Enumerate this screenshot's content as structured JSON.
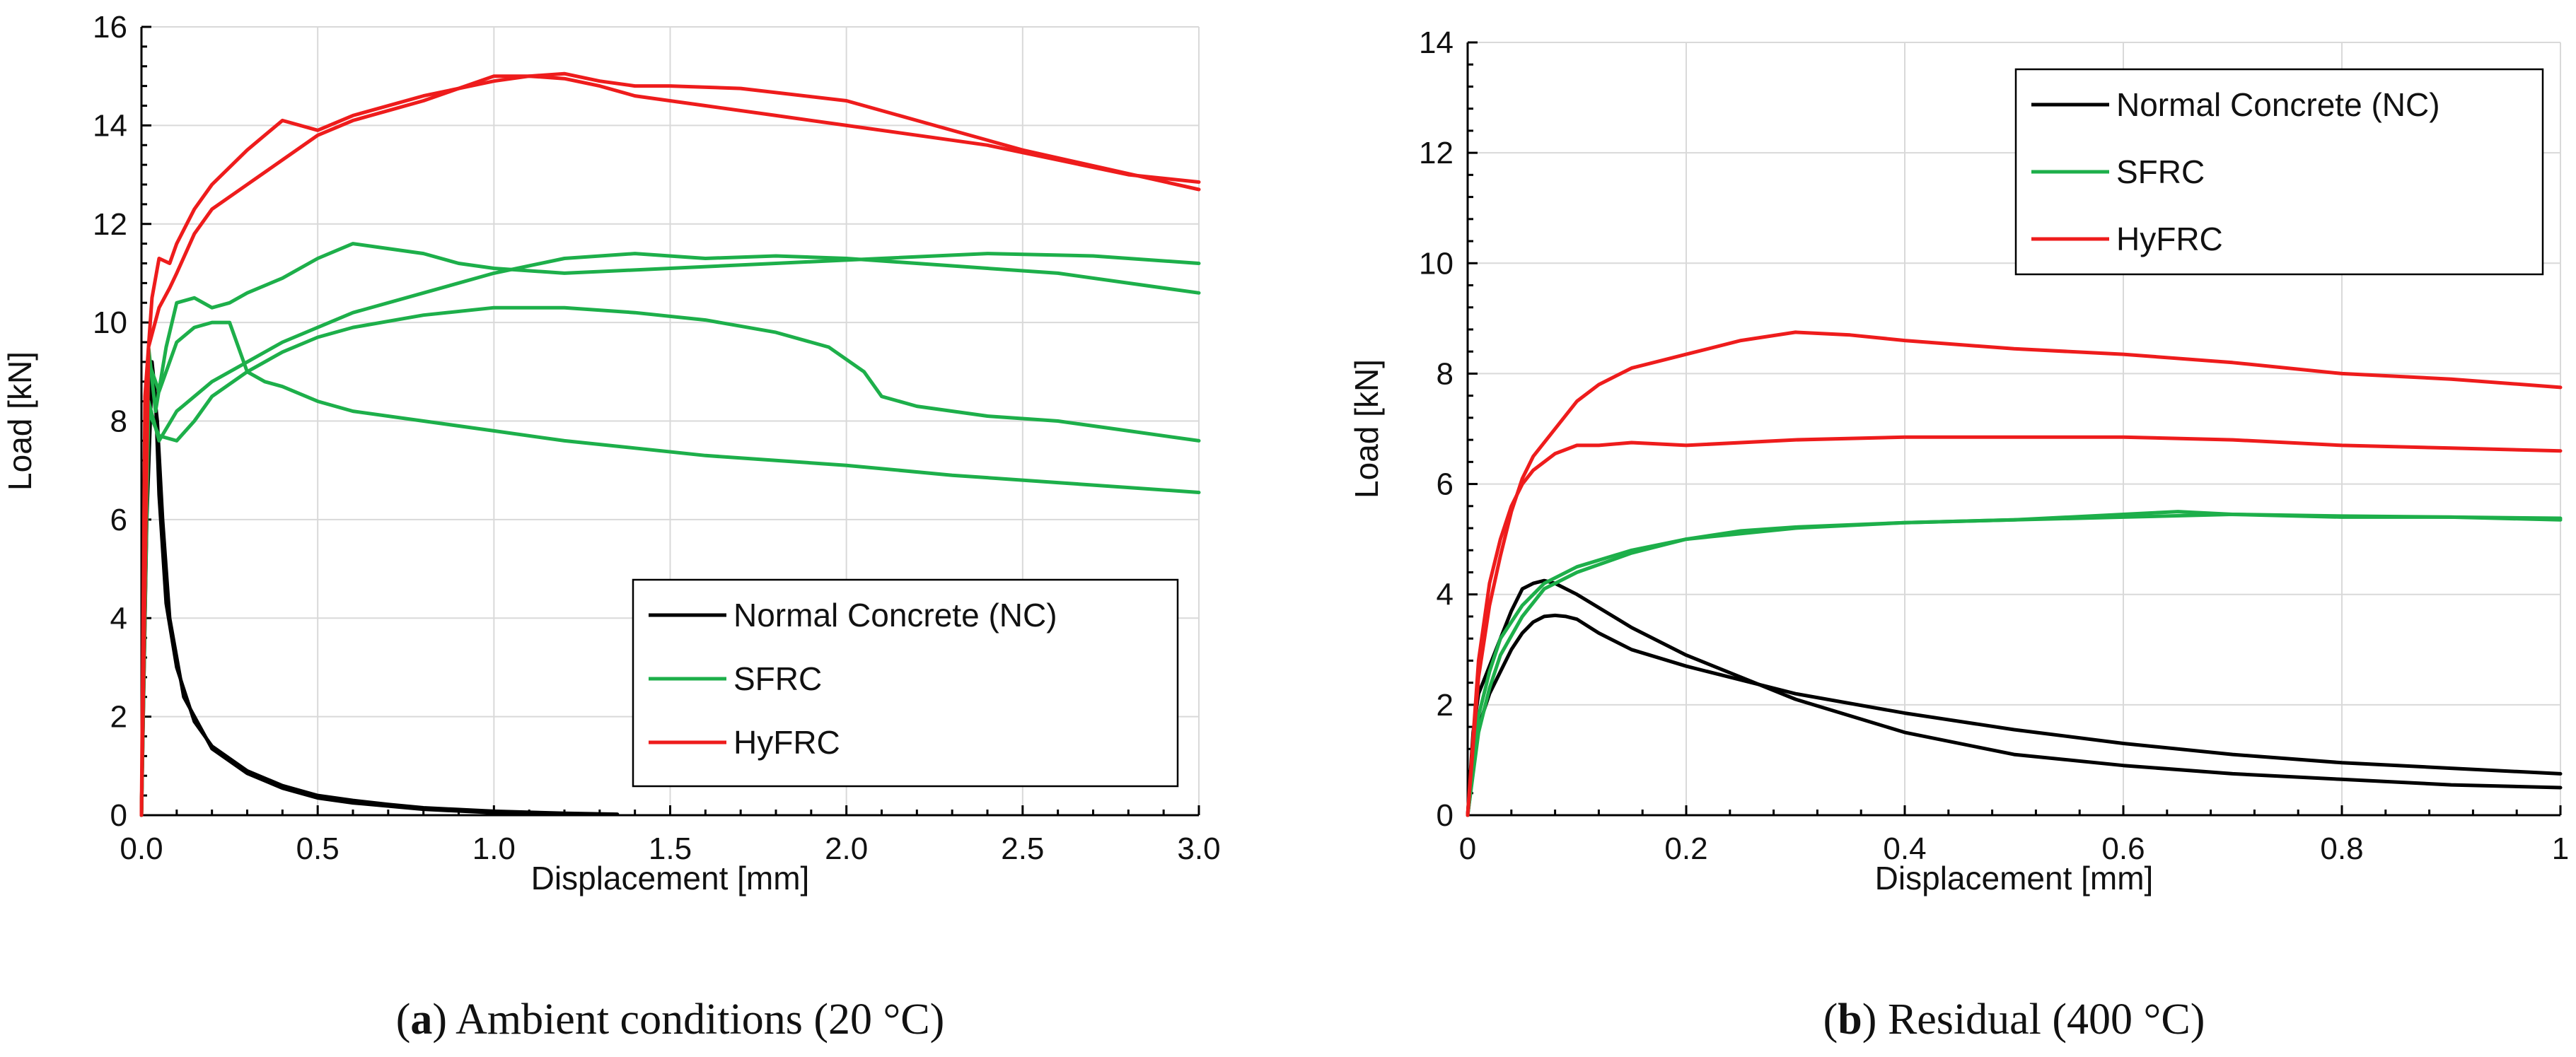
{
  "chart_data": [
    {
      "id": "a",
      "type": "line",
      "caption_letter": "a",
      "caption_text": "Ambient conditions (20 °C)",
      "xlabel": "Displacement [mm]",
      "ylabel": "Load [kN]",
      "xlim": [
        0,
        3
      ],
      "ylim": [
        0,
        16
      ],
      "xticks": [
        "0.0",
        "0.5",
        "1.0",
        "1.5",
        "2.0",
        "2.5",
        "3.0"
      ],
      "yticks": [
        "0",
        "2",
        "4",
        "6",
        "8",
        "10",
        "12",
        "14",
        "16"
      ],
      "grid": true,
      "legend_position": "bottom-right",
      "series": [
        {
          "name": "Normal Concrete (NC)",
          "color": "#000000",
          "curves": [
            {
              "x": [
                0,
                0.01,
                0.02,
                0.03,
                0.04,
                0.05,
                0.07,
                0.1,
                0.15,
                0.2,
                0.3,
                0.4,
                0.5,
                0.6,
                0.7,
                0.8,
                1.0,
                1.2,
                1.35
              ],
              "y": [
                0,
                5,
                8.5,
                9.2,
                8.5,
                6.5,
                4.3,
                3.0,
                1.9,
                1.4,
                0.9,
                0.6,
                0.4,
                0.3,
                0.22,
                0.15,
                0.08,
                0.04,
                0.02
              ]
            },
            {
              "x": [
                0,
                0.015,
                0.03,
                0.045,
                0.06,
                0.08,
                0.12,
                0.2,
                0.3,
                0.4,
                0.5,
                0.6,
                0.8,
                1.0,
                1.2
              ],
              "y": [
                0,
                6,
                9.0,
                8.0,
                6.0,
                4.0,
                2.4,
                1.35,
                0.85,
                0.55,
                0.35,
                0.25,
                0.12,
                0.05,
                0.02
              ]
            }
          ]
        },
        {
          "name": "SFRC",
          "color": "#1daf4a",
          "curves": [
            {
              "x": [
                0,
                0.02,
                0.04,
                0.07,
                0.1,
                0.15,
                0.2,
                0.25,
                0.3,
                0.4,
                0.5,
                0.6,
                0.7,
                0.8,
                0.9,
                1.0,
                1.2,
                1.5,
                1.8,
                2.1,
                2.4,
                2.7,
                3.0
              ],
              "y": [
                0,
                9.5,
                8.2,
                9.5,
                10.4,
                10.5,
                10.3,
                10.4,
                10.6,
                10.9,
                11.3,
                11.6,
                11.5,
                11.4,
                11.2,
                11.1,
                11.0,
                11.1,
                11.2,
                11.3,
                11.4,
                11.35,
                11.2
              ]
            },
            {
              "x": [
                0,
                0.02,
                0.05,
                0.1,
                0.15,
                0.2,
                0.25,
                0.3,
                0.35,
                0.4,
                0.5,
                0.6,
                0.8,
                1.0,
                1.2,
                1.4,
                1.6,
                1.8,
                2.0,
                2.3,
                2.6,
                3.0
              ],
              "y": [
                0,
                9.2,
                8.6,
                9.6,
                9.9,
                10.0,
                10.0,
                9.0,
                8.8,
                8.7,
                8.4,
                8.2,
                8.0,
                7.8,
                7.6,
                7.45,
                7.3,
                7.2,
                7.1,
                6.9,
                6.75,
                6.55
              ]
            },
            {
              "x": [
                0,
                0.02,
                0.05,
                0.1,
                0.15,
                0.2,
                0.3,
                0.4,
                0.5,
                0.6,
                0.8,
                1.0,
                1.2,
                1.4,
                1.6,
                1.8,
                1.95,
                2.05,
                2.1,
                2.2,
                2.4,
                2.6,
                2.8,
                3.0
              ],
              "y": [
                0,
                8.2,
                7.7,
                7.6,
                8.0,
                8.5,
                9.0,
                9.4,
                9.7,
                9.9,
                10.15,
                10.3,
                10.3,
                10.2,
                10.05,
                9.8,
                9.5,
                9.0,
                8.5,
                8.3,
                8.1,
                8.0,
                7.8,
                7.6
              ]
            },
            {
              "x": [
                0,
                0.02,
                0.05,
                0.1,
                0.2,
                0.3,
                0.4,
                0.5,
                0.6,
                0.8,
                1.0,
                1.2,
                1.4,
                1.6,
                1.8,
                2.0,
                2.2,
                2.4,
                2.6,
                2.8,
                3.0
              ],
              "y": [
                0,
                8.4,
                7.6,
                8.2,
                8.8,
                9.2,
                9.6,
                9.9,
                10.2,
                10.6,
                11.0,
                11.3,
                11.4,
                11.3,
                11.35,
                11.3,
                11.2,
                11.1,
                11.0,
                10.8,
                10.6
              ]
            }
          ]
        },
        {
          "name": "HyFRC",
          "color": "#ee1c1c",
          "curves": [
            {
              "x": [
                0,
                0.01,
                0.03,
                0.05,
                0.08,
                0.1,
                0.15,
                0.2,
                0.3,
                0.4,
                0.5,
                0.6,
                0.8,
                1.0,
                1.1,
                1.2,
                1.3,
                1.4,
                1.5,
                1.7,
                2.0,
                2.25,
                2.5,
                2.75,
                3.0
              ],
              "y": [
                0,
                8.5,
                10.5,
                11.3,
                11.2,
                11.6,
                12.3,
                12.8,
                13.5,
                14.1,
                13.9,
                14.2,
                14.6,
                14.9,
                15.0,
                15.05,
                14.9,
                14.8,
                14.8,
                14.75,
                14.5,
                14.0,
                13.5,
                13.1,
                12.7
              ]
            },
            {
              "x": [
                0,
                0.02,
                0.05,
                0.08,
                0.1,
                0.15,
                0.2,
                0.3,
                0.4,
                0.5,
                0.6,
                0.8,
                1.0,
                1.1,
                1.2,
                1.3,
                1.4,
                1.6,
                1.8,
                2.0,
                2.2,
                2.4,
                2.6,
                2.8,
                3.0
              ],
              "y": [
                0,
                9.5,
                10.3,
                10.7,
                11.0,
                11.8,
                12.3,
                12.8,
                13.3,
                13.8,
                14.1,
                14.5,
                15.0,
                15.0,
                14.95,
                14.8,
                14.6,
                14.4,
                14.2,
                14.0,
                13.8,
                13.6,
                13.3,
                13.0,
                12.85
              ]
            }
          ]
        }
      ]
    },
    {
      "id": "b",
      "type": "line",
      "caption_letter": "b",
      "caption_text": "Residual (400 °C)",
      "xlabel": "Displacement [mm]",
      "ylabel": "Load [kN]",
      "xlim": [
        0,
        1
      ],
      "ylim": [
        0,
        14
      ],
      "xticks": [
        "0",
        "0.2",
        "0.4",
        "0.6",
        "0.8",
        "1"
      ],
      "yticks": [
        "0",
        "2",
        "4",
        "6",
        "8",
        "10",
        "12",
        "14"
      ],
      "grid": true,
      "legend_position": "top-right",
      "series": [
        {
          "name": "Normal Concrete (NC)",
          "color": "#000000",
          "curves": [
            {
              "x": [
                0,
                0.005,
                0.01,
                0.02,
                0.03,
                0.04,
                0.05,
                0.06,
                0.07,
                0.08,
                0.1,
                0.15,
                0.2,
                0.25,
                0.3,
                0.4,
                0.5,
                0.6,
                0.7,
                0.8,
                0.9,
                1.0
              ],
              "y": [
                0,
                1.5,
                2.2,
                2.7,
                3.2,
                3.7,
                4.1,
                4.2,
                4.25,
                4.2,
                4.0,
                3.4,
                2.9,
                2.5,
                2.1,
                1.5,
                1.1,
                0.9,
                0.75,
                0.65,
                0.55,
                0.5
              ]
            },
            {
              "x": [
                0,
                0.01,
                0.02,
                0.03,
                0.04,
                0.05,
                0.06,
                0.07,
                0.08,
                0.09,
                0.1,
                0.12,
                0.15,
                0.2,
                0.25,
                0.3,
                0.4,
                0.5,
                0.6,
                0.7,
                0.8,
                0.9,
                1.0
              ],
              "y": [
                0,
                1.6,
                2.2,
                2.6,
                3.0,
                3.3,
                3.5,
                3.6,
                3.62,
                3.6,
                3.55,
                3.3,
                3.0,
                2.7,
                2.45,
                2.2,
                1.85,
                1.55,
                1.3,
                1.1,
                0.95,
                0.85,
                0.75
              ]
            }
          ]
        },
        {
          "name": "SFRC",
          "color": "#1daf4a",
          "curves": [
            {
              "x": [
                0,
                0.01,
                0.02,
                0.03,
                0.05,
                0.07,
                0.1,
                0.15,
                0.2,
                0.25,
                0.3,
                0.4,
                0.5,
                0.6,
                0.7,
                0.8,
                0.9,
                1.0
              ],
              "y": [
                0,
                1.8,
                2.6,
                3.2,
                3.8,
                4.2,
                4.5,
                4.8,
                5.0,
                5.15,
                5.22,
                5.3,
                5.35,
                5.4,
                5.45,
                5.42,
                5.4,
                5.38
              ]
            },
            {
              "x": [
                0,
                0.01,
                0.02,
                0.03,
                0.05,
                0.07,
                0.1,
                0.15,
                0.2,
                0.25,
                0.3,
                0.4,
                0.5,
                0.6,
                0.65,
                0.7,
                0.8,
                0.9,
                1.0
              ],
              "y": [
                0,
                1.5,
                2.3,
                2.9,
                3.6,
                4.1,
                4.4,
                4.75,
                5.0,
                5.1,
                5.2,
                5.3,
                5.35,
                5.45,
                5.5,
                5.45,
                5.4,
                5.4,
                5.35
              ]
            }
          ]
        },
        {
          "name": "HyFRC",
          "color": "#ee1c1c",
          "curves": [
            {
              "x": [
                0,
                0.01,
                0.02,
                0.03,
                0.04,
                0.05,
                0.06,
                0.08,
                0.1,
                0.12,
                0.15,
                0.2,
                0.25,
                0.3,
                0.35,
                0.4,
                0.5,
                0.6,
                0.7,
                0.8,
                0.9,
                1.0
              ],
              "y": [
                0,
                2.5,
                3.8,
                4.7,
                5.5,
                6.1,
                6.5,
                7.0,
                7.5,
                7.8,
                8.1,
                8.35,
                8.6,
                8.75,
                8.7,
                8.6,
                8.45,
                8.35,
                8.2,
                8.0,
                7.9,
                7.75
              ]
            },
            {
              "x": [
                0,
                0.01,
                0.02,
                0.03,
                0.04,
                0.05,
                0.06,
                0.08,
                0.1,
                0.12,
                0.15,
                0.2,
                0.3,
                0.4,
                0.5,
                0.6,
                0.7,
                0.8,
                0.9,
                1.0
              ],
              "y": [
                0,
                2.8,
                4.2,
                5.0,
                5.6,
                6.0,
                6.25,
                6.55,
                6.7,
                6.7,
                6.75,
                6.7,
                6.8,
                6.85,
                6.85,
                6.85,
                6.8,
                6.7,
                6.65,
                6.6
              ]
            }
          ]
        }
      ]
    }
  ]
}
